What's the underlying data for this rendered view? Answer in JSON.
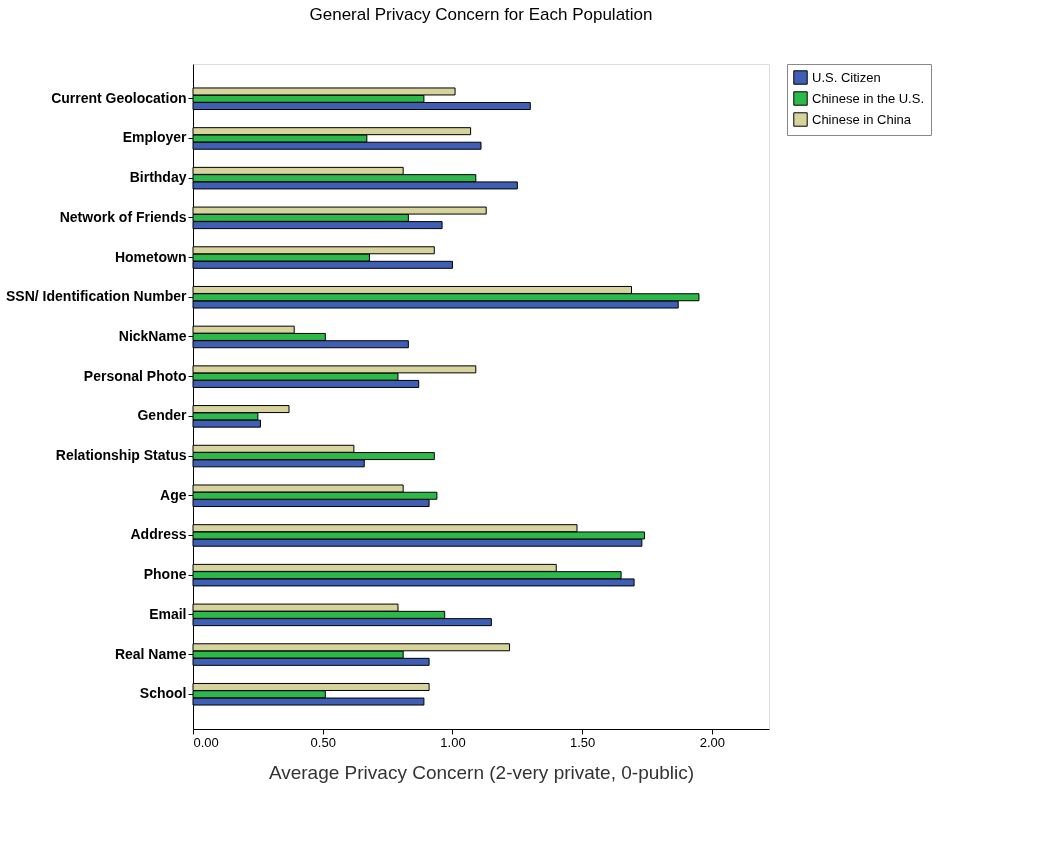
{
  "chart_data": {
    "type": "bar",
    "orientation": "horizontal",
    "title": "General Privacy Concern for Each Population",
    "xlabel": "Average Privacy Concern (2-very private, 0-public)",
    "categories": [
      "Current Geolocation",
      "Employer",
      "Birthday",
      "Network of Friends",
      "Hometown",
      "SSN/ Identification Number",
      "NickName",
      "Personal Photo",
      "Gender",
      "Relationship Status",
      "Age",
      "Address",
      "Phone",
      "Email",
      "Real Name",
      "School"
    ],
    "series": [
      {
        "name": "U.S. Citizen",
        "color": "#3f5fb5",
        "values": [
          1.3,
          1.11,
          1.25,
          0.96,
          1.0,
          1.87,
          0.83,
          0.87,
          0.26,
          0.66,
          0.91,
          1.73,
          1.7,
          1.15,
          0.91,
          0.89
        ]
      },
      {
        "name": "Chinese in the U.S.",
        "color": "#2db84a",
        "values": [
          0.89,
          0.67,
          1.09,
          0.83,
          0.68,
          1.95,
          0.51,
          0.79,
          0.25,
          0.93,
          0.94,
          1.74,
          1.65,
          0.97,
          0.81,
          0.51
        ]
      },
      {
        "name": "Chinese in China",
        "color": "#d6d49c",
        "values": [
          1.01,
          1.07,
          0.81,
          1.13,
          0.93,
          1.69,
          0.39,
          1.09,
          0.37,
          0.62,
          0.81,
          1.48,
          1.4,
          0.79,
          1.22,
          0.91
        ]
      }
    ],
    "xlim": [
      0,
      2.22
    ],
    "xticks": [
      {
        "value": 0,
        "label": "0.00"
      },
      {
        "value": 0.5,
        "label": "0.50"
      },
      {
        "value": 1,
        "label": "1.00"
      },
      {
        "value": 1.5,
        "label": "1.50"
      },
      {
        "value": 2,
        "label": "2.00"
      }
    ],
    "grid": false,
    "legend": "top right"
  }
}
